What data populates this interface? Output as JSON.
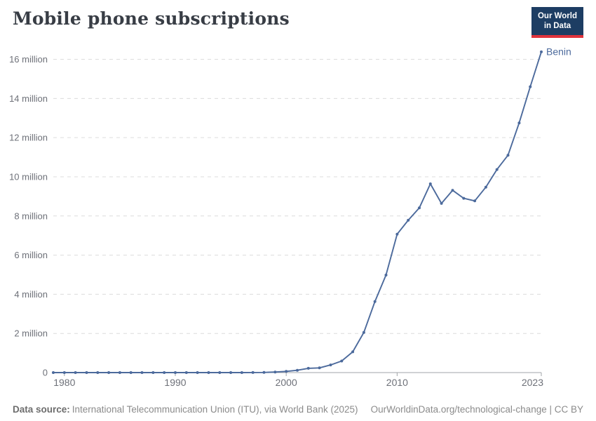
{
  "header": {
    "title": "Mobile phone subscriptions",
    "logo": {
      "line1": "Our World",
      "line2": "in Data"
    }
  },
  "chart_data": {
    "type": "line",
    "title": "Mobile phone subscriptions",
    "entity": "Benin",
    "series_label": "Benin",
    "unit": "subscriptions (millions)",
    "xlim": [
      1979,
      2023
    ],
    "ylim": [
      0,
      16
    ],
    "grid": "horizontal dashed",
    "legend_position": "end-of-line label",
    "x": [
      1979,
      1980,
      1981,
      1982,
      1983,
      1984,
      1985,
      1986,
      1987,
      1988,
      1989,
      1990,
      1991,
      1992,
      1993,
      1994,
      1995,
      1996,
      1997,
      1998,
      1999,
      2000,
      2001,
      2002,
      2003,
      2004,
      2005,
      2006,
      2007,
      2008,
      2009,
      2010,
      2011,
      2012,
      2013,
      2014,
      2015,
      2016,
      2017,
      2018,
      2019,
      2020,
      2021,
      2022,
      2023
    ],
    "values": [
      0,
      0,
      0,
      0,
      0,
      0,
      0,
      0,
      0,
      0,
      0,
      0,
      0,
      0,
      0,
      0,
      0,
      0.001,
      0.004,
      0.006,
      0.03,
      0.06,
      0.12,
      0.22,
      0.24,
      0.39,
      0.59,
      1.06,
      2.05,
      3.63,
      4.98,
      7.07,
      7.78,
      8.41,
      9.64,
      8.64,
      9.31,
      8.9,
      8.77,
      9.47,
      10.37,
      11.1,
      12.75,
      14.6,
      16.38
    ],
    "yticks": [
      {
        "v": 0,
        "label": "0"
      },
      {
        "v": 2,
        "label": "2 million"
      },
      {
        "v": 4,
        "label": "4 million"
      },
      {
        "v": 6,
        "label": "6 million"
      },
      {
        "v": 8,
        "label": "8 million"
      },
      {
        "v": 10,
        "label": "10 million"
      },
      {
        "v": 12,
        "label": "12 million"
      },
      {
        "v": 14,
        "label": "14 million"
      },
      {
        "v": 16,
        "label": "16 million"
      }
    ],
    "xticks": [
      "1980",
      "1990",
      "2000",
      "2010",
      "2023"
    ]
  },
  "footer": {
    "source_label": "Data source:",
    "source_text": "International Telecommunication Union (ITU), via World Bank (2025)",
    "link_text": "OurWorldinData.org/technological-change | CC BY"
  },
  "colors": {
    "line": "#4c6a9c",
    "series_label": "#4c6a9c",
    "grid": "#dcdcdc",
    "axis": "#a1a5a9",
    "tick_label": "#6e7179",
    "title": "#383d45",
    "footer_text": "#8b8b8b",
    "logo_bg": "#1d3d63",
    "logo_stripe": "#e0333c"
  }
}
